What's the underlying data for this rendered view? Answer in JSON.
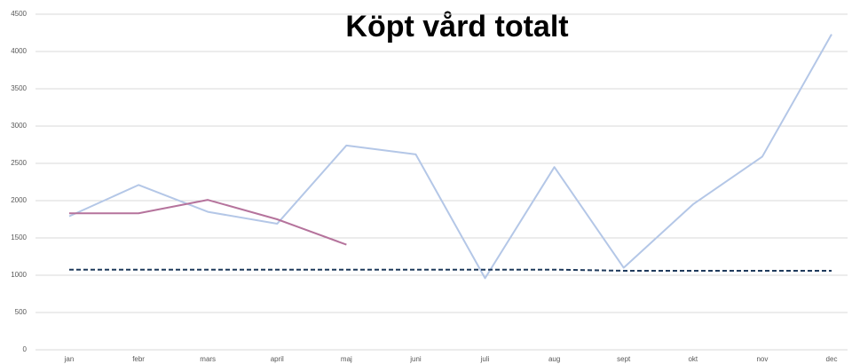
{
  "chart_data": {
    "type": "line",
    "title": "Köpt vård totalt",
    "categories": [
      "jan",
      "febr",
      "mars",
      "april",
      "maj",
      "juni",
      "juli",
      "aug",
      "sept",
      "okt",
      "nov",
      "dec"
    ],
    "series": [
      {
        "color": "#b4c7e7",
        "dash": false,
        "values": [
          1790,
          2210,
          1850,
          1690,
          2740,
          2620,
          960,
          2450,
          1100,
          1950,
          2590,
          4230
        ]
      },
      {
        "color": "#b5739c",
        "dash": false,
        "values": [
          1830,
          1830,
          2010,
          1750,
          1410,
          null,
          null,
          null,
          null,
          null,
          null,
          null
        ]
      },
      {
        "color": "#1f3a5c",
        "dash": true,
        "values": [
          1075,
          1075,
          1075,
          1075,
          1075,
          1075,
          1075,
          1075,
          1060,
          1060,
          1060,
          1060
        ]
      }
    ],
    "ylim": [
      0,
      4500
    ],
    "yticks": [
      0,
      500,
      1000,
      1500,
      2000,
      2500,
      3000,
      3500,
      4000,
      4500
    ],
    "grid": true
  }
}
